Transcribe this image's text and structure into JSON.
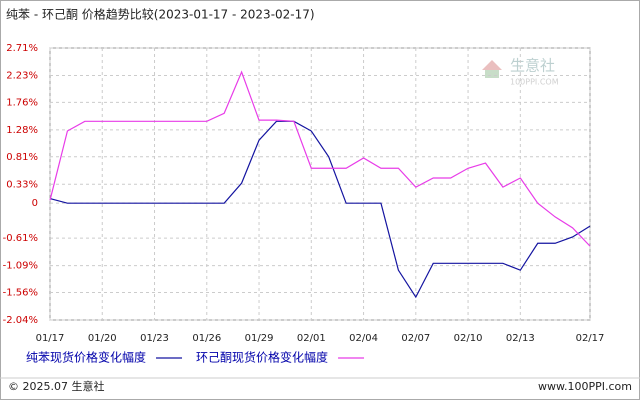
{
  "chart_data": {
    "type": "line",
    "title": "纯苯 - 环己酮 价格趋势比较(2023-01-17 - 2023-02-17)",
    "categories": [
      "01/17",
      null,
      null,
      "01/20",
      null,
      null,
      "01/23",
      null,
      null,
      "01/26",
      null,
      null,
      "01/29",
      null,
      null,
      "02/01",
      null,
      null,
      "02/04",
      null,
      null,
      "02/07",
      null,
      null,
      "02/10",
      null,
      null,
      "02/13",
      null,
      null,
      null,
      "02/17"
    ],
    "series": [
      {
        "name": "纯苯现货价格变化幅度",
        "color": "#1414a0",
        "values": [
          0.08,
          0,
          0,
          0,
          0,
          0,
          0,
          0,
          0,
          0,
          0,
          0.35,
          1.1,
          1.43,
          1.43,
          1.26,
          0.81,
          0,
          0,
          0,
          -1.17,
          -1.64,
          -1.05,
          -1.05,
          -1.05,
          -1.05,
          -1.05,
          -1.17,
          -0.7,
          -0.7,
          -0.59,
          -0.4
        ]
      },
      {
        "name": "环己酮现货价格变化幅度",
        "color": "#e83ce8",
        "values": [
          0.05,
          1.26,
          1.43,
          1.43,
          1.43,
          1.43,
          1.43,
          1.43,
          1.43,
          1.43,
          1.57,
          2.29,
          1.45,
          1.45,
          1.43,
          0.61,
          0.61,
          0.61,
          0.79,
          0.61,
          0.61,
          0.28,
          0.44,
          0.44,
          0.61,
          0.7,
          0.28,
          0.44,
          0.0,
          -0.24,
          -0.43,
          -0.75
        ]
      }
    ],
    "ylim": [
      -2.04,
      2.71
    ],
    "yticks": [
      {
        "value": 2.71,
        "label": "2.71%"
      },
      {
        "value": 2.23,
        "label": "2.23%"
      },
      {
        "value": 1.76,
        "label": "1.76%"
      },
      {
        "value": 1.28,
        "label": "1.28%"
      },
      {
        "value": 0.81,
        "label": "0.81%"
      },
      {
        "value": 0.33,
        "label": "0.33%"
      },
      0,
      {
        "value": -0.61,
        "label": "-0.61%"
      },
      {
        "value": -1.09,
        "label": "-1.09%"
      },
      {
        "value": -1.56,
        "label": "-1.56%"
      },
      {
        "value": -2.04,
        "label": "-2.04%"
      }
    ],
    "grid": true
  },
  "watermark": {
    "name": "生意社",
    "site": "100PPI.COM"
  },
  "footer": {
    "left": "© 2025.07 生意社",
    "right": "www.100PPI.com"
  }
}
